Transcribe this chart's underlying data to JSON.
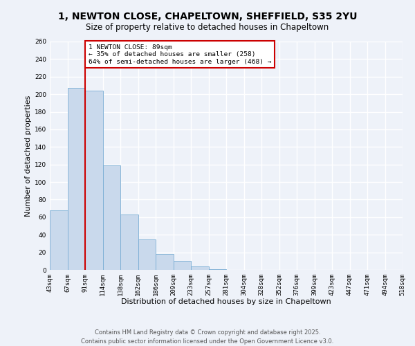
{
  "title": "1, NEWTON CLOSE, CHAPELTOWN, SHEFFIELD, S35 2YU",
  "subtitle": "Size of property relative to detached houses in Chapeltown",
  "bar_values": [
    68,
    207,
    204,
    119,
    63,
    35,
    18,
    10,
    4,
    1,
    0,
    0,
    0,
    0,
    0,
    0,
    0,
    0,
    0,
    0
  ],
  "bin_labels": [
    "43sqm",
    "67sqm",
    "91sqm",
    "114sqm",
    "138sqm",
    "162sqm",
    "186sqm",
    "209sqm",
    "233sqm",
    "257sqm",
    "281sqm",
    "304sqm",
    "328sqm",
    "352sqm",
    "376sqm",
    "399sqm",
    "423sqm",
    "447sqm",
    "471sqm",
    "494sqm",
    "518sqm"
  ],
  "bar_color": "#c9d9ec",
  "bar_edge_color": "#7aadd4",
  "vline_x": 2,
  "vline_color": "#cc0000",
  "annotation_text": "1 NEWTON CLOSE: 89sqm\n← 35% of detached houses are smaller (258)\n64% of semi-detached houses are larger (468) →",
  "annotation_box_color": "#ffffff",
  "annotation_box_edge": "#cc0000",
  "xlabel": "Distribution of detached houses by size in Chapeltown",
  "ylabel": "Number of detached properties",
  "ylim": [
    0,
    260
  ],
  "yticks": [
    0,
    20,
    40,
    60,
    80,
    100,
    120,
    140,
    160,
    180,
    200,
    220,
    240,
    260
  ],
  "footer_line1": "Contains HM Land Registry data © Crown copyright and database right 2025.",
  "footer_line2": "Contains public sector information licensed under the Open Government Licence v3.0.",
  "bg_color": "#eef2f9",
  "plot_bg_color": "#eef2f9",
  "grid_color": "#ffffff",
  "title_fontsize": 10,
  "subtitle_fontsize": 8.5,
  "axis_label_fontsize": 8,
  "tick_fontsize": 6.5,
  "footer_fontsize": 6
}
